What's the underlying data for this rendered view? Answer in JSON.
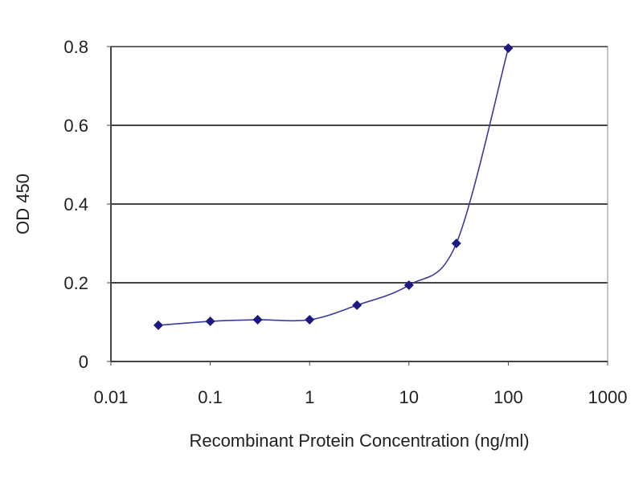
{
  "chart_data": {
    "type": "line",
    "title": "",
    "xlabel": "Recombinant Protein Concentration (ng/ml)",
    "ylabel": "OD 450",
    "x_scale": "log",
    "xlim": [
      0.01,
      1000
    ],
    "ylim": [
      0,
      0.8
    ],
    "x_ticks": [
      "0.01",
      "0.1",
      "1",
      "10",
      "100",
      "1000"
    ],
    "x_tick_values": [
      0.01,
      0.1,
      1,
      10,
      100,
      1000
    ],
    "y_ticks": [
      "0",
      "0.2",
      "0.4",
      "0.6",
      "0.8"
    ],
    "y_tick_values": [
      0,
      0.2,
      0.4,
      0.6,
      0.8
    ],
    "grid": "horizontal",
    "legend": "none",
    "series": [
      {
        "x": [
          0.03,
          0.1,
          0.3,
          1,
          3,
          10,
          30,
          100
        ],
        "y": [
          0.092,
          0.102,
          0.106,
          0.106,
          0.143,
          0.194,
          0.3,
          0.796
        ],
        "color": "#1a1a80",
        "marker": "diamond",
        "smooth": true
      }
    ]
  }
}
